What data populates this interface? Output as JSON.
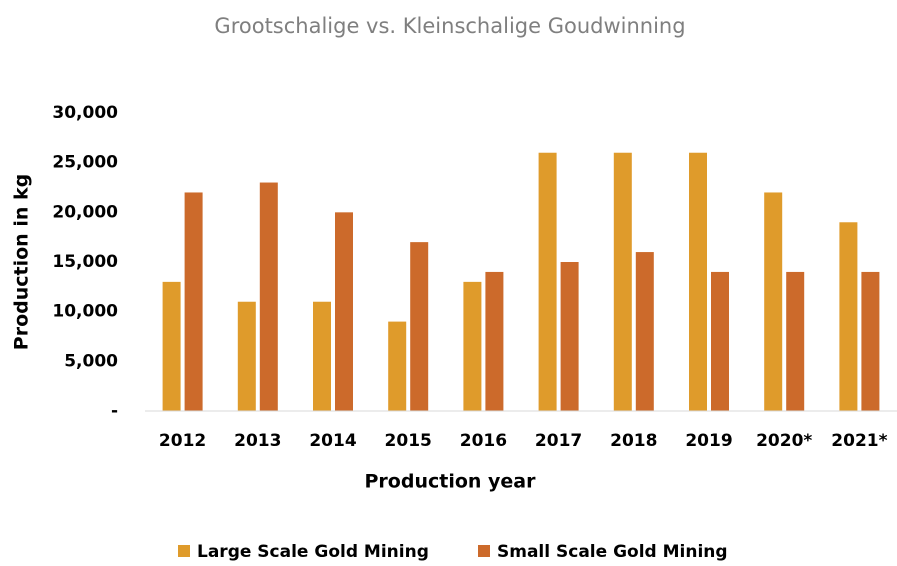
{
  "chart_data": {
    "type": "bar",
    "title": "Grootschalige vs. Kleinschalige Goudwinning",
    "x_label": "Production year",
    "y_label": "Production in kg",
    "categories": [
      "2012",
      "2013",
      "2014",
      "2015",
      "2016",
      "2017",
      "2018",
      "2019",
      "2020*",
      "2021*"
    ],
    "series": [
      {
        "name": "Large Scale Gold Mining",
        "color": "#df9b2b",
        "values": [
          13000,
          11000,
          11000,
          9000,
          13000,
          26000,
          26000,
          26000,
          22000,
          19000
        ]
      },
      {
        "name": "Small Scale Gold Mining",
        "color": "#cc6a2b",
        "values": [
          22000,
          23000,
          20000,
          17000,
          14000,
          15000,
          16000,
          14000,
          14000,
          14000
        ]
      }
    ],
    "ylim": [
      0,
      30000
    ],
    "yticks": [
      {
        "value": 0,
        "label": "-"
      },
      {
        "value": 5000,
        "label": "5,000"
      },
      {
        "value": 10000,
        "label": "10,000"
      },
      {
        "value": 15000,
        "label": "15,000"
      },
      {
        "value": 20000,
        "label": "20,000"
      },
      {
        "value": 25000,
        "label": "25,000"
      },
      {
        "value": 30000,
        "label": "30,000"
      }
    ],
    "grid": false,
    "legend": "bottom"
  }
}
